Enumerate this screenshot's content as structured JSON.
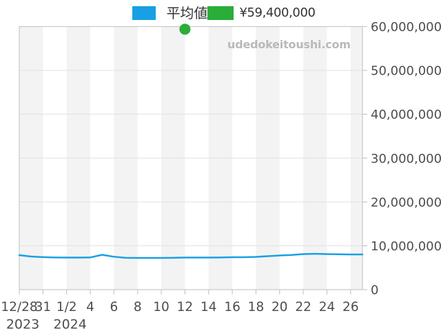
{
  "legend": {
    "average_label": "平均値",
    "sale_value": "¥59,400,000",
    "average_color": "#18a0e4",
    "sale_color": "#2bad3a"
  },
  "watermark": "udedokeitoushi.com",
  "chart_data": {
    "type": "line",
    "title": "",
    "xlabel": "",
    "ylabel": "",
    "ylim": [
      0,
      60000000
    ],
    "y_ticks": [
      0,
      10000000,
      20000000,
      30000000,
      40000000,
      50000000,
      60000000
    ],
    "x_tick_labels": [
      "12/28",
      "31",
      "1/2",
      "4",
      "6",
      "8",
      "10",
      "12",
      "14",
      "16",
      "18",
      "20",
      "22",
      "24",
      "26"
    ],
    "x_year_labels": [
      {
        "label": "2023",
        "tick_index": 0
      },
      {
        "label": "2024",
        "tick_index": 2
      }
    ],
    "grid": "horizontal",
    "background_stripes": true,
    "legend_position": "top-center",
    "series": [
      {
        "name": "平均値",
        "color": "#18a0e4",
        "values": [
          7860000,
          7550000,
          7420000,
          7340000,
          7310000,
          7310000,
          7340000,
          7940000,
          7500000,
          7260000,
          7230000,
          7230000,
          7230000,
          7260000,
          7310000,
          7310000,
          7310000,
          7340000,
          7390000,
          7390000,
          7470000,
          7630000,
          7780000,
          7900000,
          8100000,
          8180000,
          8100000,
          8070000,
          8020000,
          8020000
        ]
      }
    ],
    "marker": {
      "name": "¥59,400,000",
      "color": "#2bad3a",
      "value": 59400000,
      "tick_index": 7
    }
  },
  "style": {
    "stripe_color": "#f3f3f3",
    "grid_color": "#e1e1e1",
    "border_color": "#c8c8c8",
    "axis_text_color": "#4d4d4d"
  }
}
